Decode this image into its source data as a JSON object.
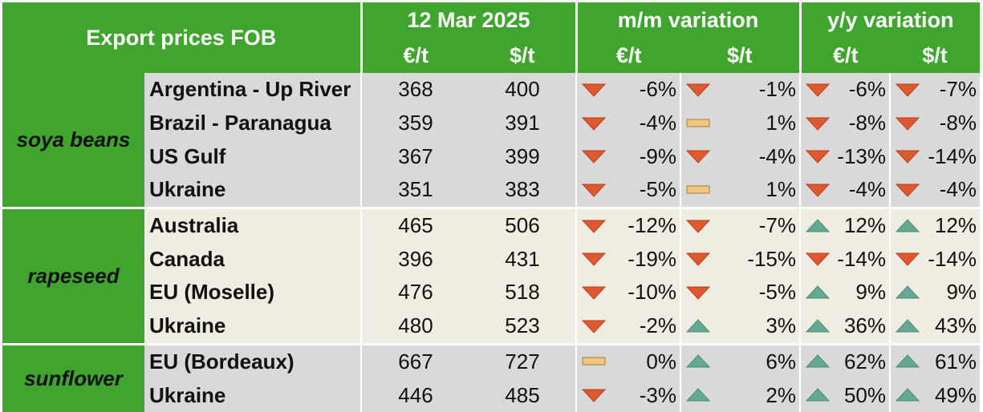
{
  "header": {
    "title": "Export prices FOB",
    "date": "12 Mar 2025",
    "mm": "m/m variation",
    "yy": "y/y variation",
    "eur": "€/t",
    "usd": "$/t"
  },
  "colors": {
    "header_green": "#3fa52e",
    "down": "#e0582f",
    "up": "#64a993",
    "flat": "#f2c67f"
  },
  "groups": [
    {
      "name": "soya beans",
      "rows": [
        {
          "origin": "Argentina - Up River",
          "eur": "368",
          "usd": "400",
          "mm_eur": "-6%",
          "mm_eur_dir": "down",
          "mm_usd": "-1%",
          "mm_usd_dir": "down",
          "yy_eur": "-6%",
          "yy_eur_dir": "down",
          "yy_usd": "-7%",
          "yy_usd_dir": "down"
        },
        {
          "origin": "Brazil - Paranagua",
          "eur": "359",
          "usd": "391",
          "mm_eur": "-4%",
          "mm_eur_dir": "down",
          "mm_usd": "1%",
          "mm_usd_dir": "flat",
          "yy_eur": "-8%",
          "yy_eur_dir": "down",
          "yy_usd": "-8%",
          "yy_usd_dir": "down"
        },
        {
          "origin": "US Gulf",
          "eur": "367",
          "usd": "399",
          "mm_eur": "-9%",
          "mm_eur_dir": "down",
          "mm_usd": "-4%",
          "mm_usd_dir": "down",
          "yy_eur": "-13%",
          "yy_eur_dir": "down",
          "yy_usd": "-14%",
          "yy_usd_dir": "down"
        },
        {
          "origin": "Ukraine",
          "eur": "351",
          "usd": "383",
          "mm_eur": "-5%",
          "mm_eur_dir": "down",
          "mm_usd": "1%",
          "mm_usd_dir": "flat",
          "yy_eur": "-4%",
          "yy_eur_dir": "down",
          "yy_usd": "-4%",
          "yy_usd_dir": "down"
        }
      ]
    },
    {
      "name": "rapeseed",
      "rows": [
        {
          "origin": "Australia",
          "eur": "465",
          "usd": "506",
          "mm_eur": "-12%",
          "mm_eur_dir": "down",
          "mm_usd": "-7%",
          "mm_usd_dir": "down",
          "yy_eur": "12%",
          "yy_eur_dir": "up",
          "yy_usd": "12%",
          "yy_usd_dir": "up"
        },
        {
          "origin": "Canada",
          "eur": "396",
          "usd": "431",
          "mm_eur": "-19%",
          "mm_eur_dir": "down",
          "mm_usd": "-15%",
          "mm_usd_dir": "down",
          "yy_eur": "-14%",
          "yy_eur_dir": "down",
          "yy_usd": "-14%",
          "yy_usd_dir": "down"
        },
        {
          "origin": "EU (Moselle)",
          "eur": "476",
          "usd": "518",
          "mm_eur": "-10%",
          "mm_eur_dir": "down",
          "mm_usd": "-5%",
          "mm_usd_dir": "down",
          "yy_eur": "9%",
          "yy_eur_dir": "up",
          "yy_usd": "9%",
          "yy_usd_dir": "up"
        },
        {
          "origin": "Ukraine",
          "eur": "480",
          "usd": "523",
          "mm_eur": "-2%",
          "mm_eur_dir": "down",
          "mm_usd": "3%",
          "mm_usd_dir": "up",
          "yy_eur": "36%",
          "yy_eur_dir": "up",
          "yy_usd": "43%",
          "yy_usd_dir": "up"
        }
      ]
    },
    {
      "name": "sunflower",
      "rows": [
        {
          "origin": "EU (Bordeaux)",
          "eur": "667",
          "usd": "727",
          "mm_eur": "0%",
          "mm_eur_dir": "flat",
          "mm_usd": "6%",
          "mm_usd_dir": "up",
          "yy_eur": "62%",
          "yy_eur_dir": "up",
          "yy_usd": "61%",
          "yy_usd_dir": "up"
        },
        {
          "origin": "Ukraine",
          "eur": "446",
          "usd": "485",
          "mm_eur": "-3%",
          "mm_eur_dir": "down",
          "mm_usd": "2%",
          "mm_usd_dir": "up",
          "yy_eur": "50%",
          "yy_eur_dir": "up",
          "yy_usd": "49%",
          "yy_usd_dir": "up"
        }
      ]
    }
  ]
}
